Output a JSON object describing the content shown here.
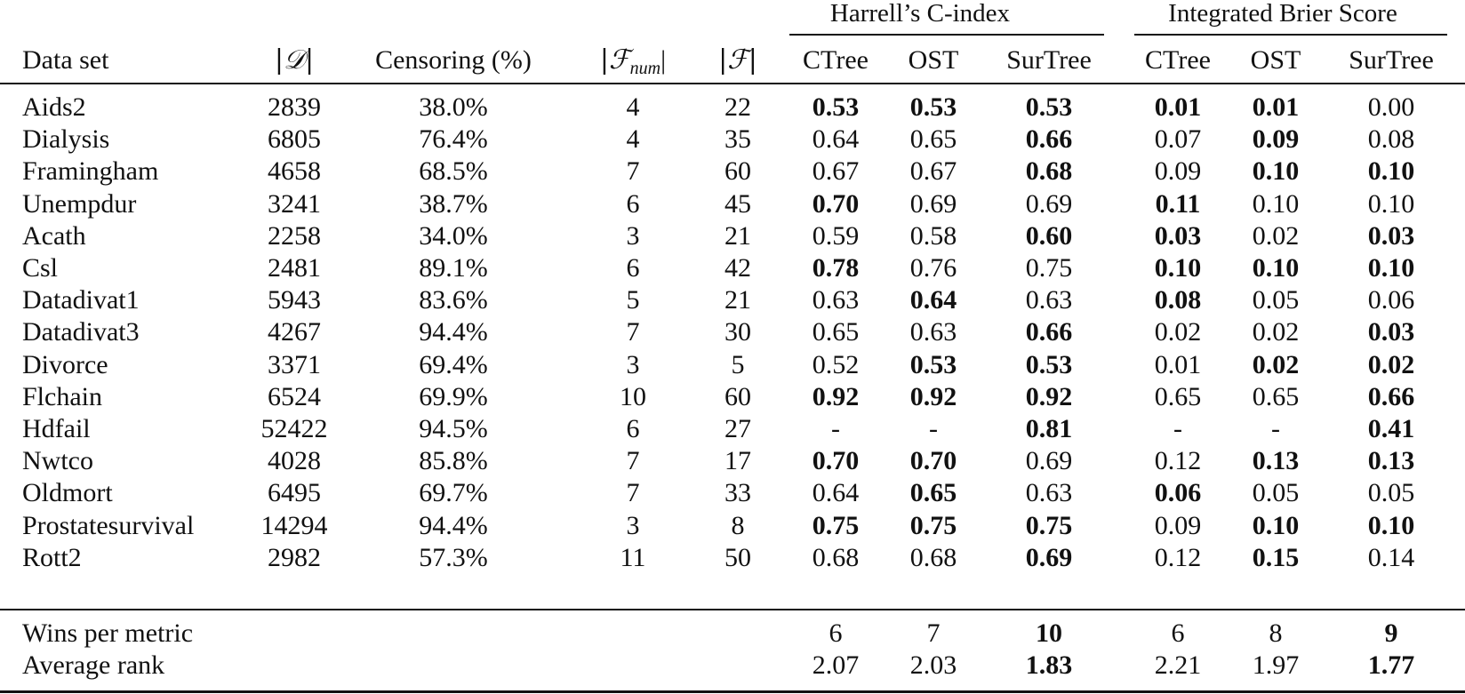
{
  "table": {
    "group_headers": {
      "c_index": "Harrell’s C-index",
      "brier": "Integrated Brier Score"
    },
    "columns": {
      "dataset": "Data set",
      "size": "|𝒟|",
      "censoring": "Censoring (%)",
      "f_num_left": "|ℱ",
      "f_num_sub": "num",
      "f_num_right": "|",
      "f": "|ℱ|",
      "ctree": "CTree",
      "ost": "OST",
      "surtree": "SurTree"
    },
    "rows": [
      {
        "name": "Aids2",
        "size": "2839",
        "cens": "38.0%",
        "fnum": "4",
        "f": "22",
        "c": [
          "0.53",
          "0.53",
          "0.53"
        ],
        "cb": [
          1,
          1,
          1
        ],
        "i": [
          "0.01",
          "0.01",
          "0.00"
        ],
        "ib": [
          1,
          1,
          0
        ]
      },
      {
        "name": "Dialysis",
        "size": "6805",
        "cens": "76.4%",
        "fnum": "4",
        "f": "35",
        "c": [
          "0.64",
          "0.65",
          "0.66"
        ],
        "cb": [
          0,
          0,
          1
        ],
        "i": [
          "0.07",
          "0.09",
          "0.08"
        ],
        "ib": [
          0,
          1,
          0
        ]
      },
      {
        "name": "Framingham",
        "size": "4658",
        "cens": "68.5%",
        "fnum": "7",
        "f": "60",
        "c": [
          "0.67",
          "0.67",
          "0.68"
        ],
        "cb": [
          0,
          0,
          1
        ],
        "i": [
          "0.09",
          "0.10",
          "0.10"
        ],
        "ib": [
          0,
          1,
          1
        ]
      },
      {
        "name": "Unempdur",
        "size": "3241",
        "cens": "38.7%",
        "fnum": "6",
        "f": "45",
        "c": [
          "0.70",
          "0.69",
          "0.69"
        ],
        "cb": [
          1,
          0,
          0
        ],
        "i": [
          "0.11",
          "0.10",
          "0.10"
        ],
        "ib": [
          1,
          0,
          0
        ]
      },
      {
        "name": "Acath",
        "size": "2258",
        "cens": "34.0%",
        "fnum": "3",
        "f": "21",
        "c": [
          "0.59",
          "0.58",
          "0.60"
        ],
        "cb": [
          0,
          0,
          1
        ],
        "i": [
          "0.03",
          "0.02",
          "0.03"
        ],
        "ib": [
          1,
          0,
          1
        ]
      },
      {
        "name": "Csl",
        "size": "2481",
        "cens": "89.1%",
        "fnum": "6",
        "f": "42",
        "c": [
          "0.78",
          "0.76",
          "0.75"
        ],
        "cb": [
          1,
          0,
          0
        ],
        "i": [
          "0.10",
          "0.10",
          "0.10"
        ],
        "ib": [
          1,
          1,
          1
        ]
      },
      {
        "name": "Datadivat1",
        "size": "5943",
        "cens": "83.6%",
        "fnum": "5",
        "f": "21",
        "c": [
          "0.63",
          "0.64",
          "0.63"
        ],
        "cb": [
          0,
          1,
          0
        ],
        "i": [
          "0.08",
          "0.05",
          "0.06"
        ],
        "ib": [
          1,
          0,
          0
        ]
      },
      {
        "name": "Datadivat3",
        "size": "4267",
        "cens": "94.4%",
        "fnum": "7",
        "f": "30",
        "c": [
          "0.65",
          "0.63",
          "0.66"
        ],
        "cb": [
          0,
          0,
          1
        ],
        "i": [
          "0.02",
          "0.02",
          "0.03"
        ],
        "ib": [
          0,
          0,
          1
        ]
      },
      {
        "name": "Divorce",
        "size": "3371",
        "cens": "69.4%",
        "fnum": "3",
        "f": "5",
        "c": [
          "0.52",
          "0.53",
          "0.53"
        ],
        "cb": [
          0,
          1,
          1
        ],
        "i": [
          "0.01",
          "0.02",
          "0.02"
        ],
        "ib": [
          0,
          1,
          1
        ]
      },
      {
        "name": "Flchain",
        "size": "6524",
        "cens": "69.9%",
        "fnum": "10",
        "f": "60",
        "c": [
          "0.92",
          "0.92",
          "0.92"
        ],
        "cb": [
          1,
          1,
          1
        ],
        "i": [
          "0.65",
          "0.65",
          "0.66"
        ],
        "ib": [
          0,
          0,
          1
        ]
      },
      {
        "name": "Hdfail",
        "size": "52422",
        "cens": "94.5%",
        "fnum": "6",
        "f": "27",
        "c": [
          "-",
          "-",
          "0.81"
        ],
        "cb": [
          0,
          0,
          1
        ],
        "i": [
          "-",
          "-",
          "0.41"
        ],
        "ib": [
          0,
          0,
          1
        ]
      },
      {
        "name": "Nwtco",
        "size": "4028",
        "cens": "85.8%",
        "fnum": "7",
        "f": "17",
        "c": [
          "0.70",
          "0.70",
          "0.69"
        ],
        "cb": [
          1,
          1,
          0
        ],
        "i": [
          "0.12",
          "0.13",
          "0.13"
        ],
        "ib": [
          0,
          1,
          1
        ]
      },
      {
        "name": "Oldmort",
        "size": "6495",
        "cens": "69.7%",
        "fnum": "7",
        "f": "33",
        "c": [
          "0.64",
          "0.65",
          "0.63"
        ],
        "cb": [
          0,
          1,
          0
        ],
        "i": [
          "0.06",
          "0.05",
          "0.05"
        ],
        "ib": [
          1,
          0,
          0
        ]
      },
      {
        "name": "Prostatesurvival",
        "size": "14294",
        "cens": "94.4%",
        "fnum": "3",
        "f": "8",
        "c": [
          "0.75",
          "0.75",
          "0.75"
        ],
        "cb": [
          1,
          1,
          1
        ],
        "i": [
          "0.09",
          "0.10",
          "0.10"
        ],
        "ib": [
          0,
          1,
          1
        ]
      },
      {
        "name": "Rott2",
        "size": "2982",
        "cens": "57.3%",
        "fnum": "11",
        "f": "50",
        "c": [
          "0.68",
          "0.68",
          "0.69"
        ],
        "cb": [
          0,
          0,
          1
        ],
        "i": [
          "0.12",
          "0.15",
          "0.14"
        ],
        "ib": [
          0,
          1,
          0
        ]
      }
    ],
    "summary": [
      {
        "name": "Wins per metric",
        "c": [
          "6",
          "7",
          "10"
        ],
        "cb": [
          0,
          0,
          1
        ],
        "i": [
          "6",
          "8",
          "9"
        ],
        "ib": [
          0,
          0,
          1
        ]
      },
      {
        "name": "Average rank",
        "c": [
          "2.07",
          "2.03",
          "1.83"
        ],
        "cb": [
          0,
          0,
          1
        ],
        "i": [
          "2.21",
          "1.97",
          "1.77"
        ],
        "ib": [
          0,
          0,
          1
        ]
      }
    ]
  }
}
